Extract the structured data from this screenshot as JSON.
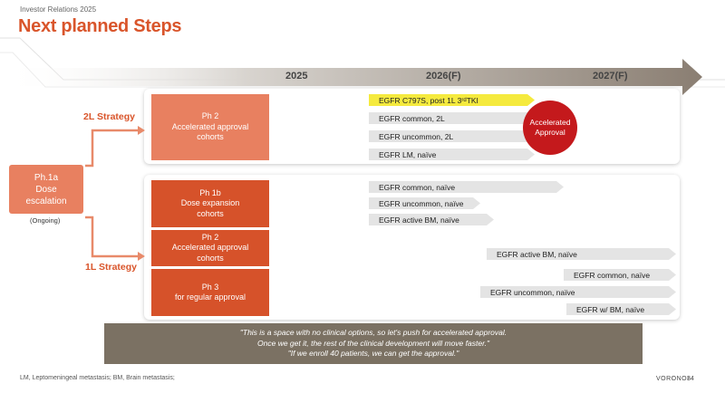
{
  "header": {
    "label": "Investor Relations 2025",
    "title": "Next planned Steps"
  },
  "timeline": {
    "years": [
      "2025",
      "2026(F)",
      "2027(F)"
    ]
  },
  "start_box": {
    "line1": "Ph.1a",
    "line2": "Dose",
    "line3": "escalation",
    "status": "(Ongoing)"
  },
  "strategies": {
    "second_line": "2L Strategy",
    "first_line": "1L Strategy"
  },
  "boxes": {
    "ph2_2l": {
      "line1": "Ph 2",
      "line2": "Accelerated approval",
      "line3": "cohorts"
    },
    "ph1b": {
      "line1": "Ph 1b",
      "line2": "Dose expansion",
      "line3": "cohorts"
    },
    "ph2_1l": {
      "line1": "Ph 2",
      "line2": "Accelerated approval",
      "line3": "cohorts"
    },
    "ph3": {
      "line1": "Ph 3",
      "line2": "for regular approval"
    }
  },
  "cohorts_2l": {
    "c797s": {
      "prefix": "EGFR C797S, post 1L 3",
      "sup": "rd",
      "suffix": " TKI"
    },
    "common": "EGFR common, 2L",
    "uncommon": "EGFR uncommon, 2L",
    "lm": "EGFR  LM, naïve"
  },
  "accelerated_badge": {
    "line1": "Accelerated",
    "line2": "Approval"
  },
  "cohorts_1b": [
    "EGFR common, naïve",
    "EGFR uncommon, naïve",
    "EGFR active BM, naïve"
  ],
  "cohorts_1l": [
    "EGFR active BM, naïve",
    "EGFR common, naïve",
    "EGFR uncommon, naïve",
    "EGFR  w/ BM, naïve"
  ],
  "quote": {
    "line1": "\"This is a space with no clinical options, so let's push for accelerated approval.",
    "line2": "Once we get it, the rest of the clinical development will move faster.\"",
    "line3": "\"If we enroll 40 patients, we can get the approval.\""
  },
  "footer": {
    "note": "LM, Leptomeningeal metastasis; BM, Brain metastasis;",
    "brand": "VORONOI",
    "page": "34"
  },
  "colors": {
    "accent": "#d9552b",
    "arrow": "#8a7e72",
    "badge": "#c4191c",
    "quote_bg": "#7b7163"
  }
}
